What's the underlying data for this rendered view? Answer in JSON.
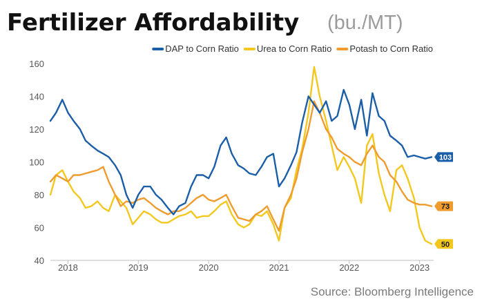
{
  "header": {
    "title": "Fertilizer Affordability",
    "unit": "(bu./MT)"
  },
  "source": "Source: Bloomberg Intelligence",
  "chart_data": {
    "type": "line",
    "title": "Fertilizer Affordability",
    "ylabel": "",
    "xlabel": "",
    "ylim": [
      40,
      160
    ],
    "xlim": [
      2017.75,
      2023.2
    ],
    "yticks": [
      "40",
      "60",
      "80",
      "100",
      "120",
      "140",
      "160"
    ],
    "xticks": [
      {
        "value": 2018,
        "label": "2018"
      },
      {
        "value": 2019,
        "label": "2019"
      },
      {
        "value": 2020,
        "label": "2020"
      },
      {
        "value": 2021,
        "label": "2021"
      },
      {
        "value": 2022,
        "label": "2022"
      },
      {
        "value": 2023,
        "label": "2023"
      }
    ],
    "grid": false,
    "legend_position": "top-right",
    "series": [
      {
        "name": "DAP to Corn Ratio",
        "color": "#1a5ea8",
        "end_label": "103",
        "x": [
          2017.75,
          2017.83,
          2017.92,
          2018.0,
          2018.08,
          2018.17,
          2018.25,
          2018.33,
          2018.42,
          2018.5,
          2018.58,
          2018.67,
          2018.75,
          2018.83,
          2018.92,
          2019.0,
          2019.08,
          2019.17,
          2019.25,
          2019.33,
          2019.42,
          2019.5,
          2019.58,
          2019.67,
          2019.75,
          2019.83,
          2019.92,
          2020.0,
          2020.08,
          2020.17,
          2020.25,
          2020.33,
          2020.42,
          2020.5,
          2020.58,
          2020.67,
          2020.75,
          2020.83,
          2020.92,
          2021.0,
          2021.08,
          2021.17,
          2021.25,
          2021.33,
          2021.42,
          2021.5,
          2021.58,
          2021.67,
          2021.75,
          2021.83,
          2021.92,
          2022.0,
          2022.08,
          2022.17,
          2022.25,
          2022.33,
          2022.42,
          2022.5,
          2022.58,
          2022.67,
          2022.75,
          2022.83,
          2022.92,
          2023.0,
          2023.08,
          2023.17
        ],
        "y": [
          125,
          130,
          138,
          130,
          125,
          120,
          113,
          110,
          107,
          105,
          103,
          98,
          92,
          80,
          72,
          80,
          85,
          85,
          80,
          77,
          72,
          68,
          73,
          75,
          85,
          92,
          92,
          90,
          97,
          110,
          115,
          105,
          98,
          96,
          93,
          92,
          97,
          103,
          105,
          85,
          90,
          98,
          106,
          124,
          140,
          135,
          130,
          137,
          125,
          128,
          144,
          135,
          120,
          138,
          116,
          142,
          128,
          125,
          116,
          113,
          110,
          103,
          104,
          103,
          102,
          103
        ]
      },
      {
        "name": "Urea to Corn Ratio",
        "color": "#f2c81e",
        "end_label": "50",
        "x": [
          2017.75,
          2017.83,
          2017.92,
          2018.0,
          2018.08,
          2018.17,
          2018.25,
          2018.33,
          2018.42,
          2018.5,
          2018.58,
          2018.67,
          2018.75,
          2018.83,
          2018.92,
          2019.0,
          2019.08,
          2019.17,
          2019.25,
          2019.33,
          2019.42,
          2019.5,
          2019.58,
          2019.67,
          2019.75,
          2019.83,
          2019.92,
          2020.0,
          2020.08,
          2020.17,
          2020.25,
          2020.33,
          2020.42,
          2020.5,
          2020.58,
          2020.67,
          2020.75,
          2020.83,
          2020.92,
          2021.0,
          2021.08,
          2021.17,
          2021.25,
          2021.33,
          2021.42,
          2021.5,
          2021.58,
          2021.67,
          2021.75,
          2021.83,
          2021.92,
          2022.0,
          2022.08,
          2022.17,
          2022.25,
          2022.33,
          2022.42,
          2022.5,
          2022.58,
          2022.67,
          2022.75,
          2022.83,
          2022.92,
          2023.0,
          2023.08,
          2023.17
        ],
        "y": [
          80,
          92,
          95,
          88,
          82,
          78,
          72,
          73,
          76,
          72,
          70,
          80,
          76,
          72,
          62,
          66,
          70,
          68,
          65,
          63,
          63,
          65,
          67,
          68,
          70,
          66,
          67,
          67,
          70,
          74,
          76,
          68,
          62,
          60,
          62,
          68,
          67,
          70,
          62,
          52,
          72,
          78,
          95,
          108,
          130,
          158,
          140,
          125,
          110,
          95,
          103,
          97,
          90,
          75,
          110,
          117,
          93,
          80,
          70,
          95,
          98,
          90,
          78,
          60,
          52,
          50
        ]
      },
      {
        "name": "Potash to Corn Ratio",
        "color": "#ef9b2d",
        "end_label": "73",
        "x": [
          2017.75,
          2017.83,
          2017.92,
          2018.0,
          2018.08,
          2018.17,
          2018.25,
          2018.33,
          2018.42,
          2018.5,
          2018.58,
          2018.67,
          2018.75,
          2018.83,
          2018.92,
          2019.0,
          2019.08,
          2019.17,
          2019.25,
          2019.33,
          2019.42,
          2019.5,
          2019.58,
          2019.67,
          2019.75,
          2019.83,
          2019.92,
          2020.0,
          2020.08,
          2020.17,
          2020.25,
          2020.33,
          2020.42,
          2020.5,
          2020.58,
          2020.67,
          2020.75,
          2020.83,
          2020.92,
          2021.0,
          2021.08,
          2021.17,
          2021.25,
          2021.33,
          2021.42,
          2021.5,
          2021.58,
          2021.67,
          2021.75,
          2021.83,
          2021.92,
          2022.0,
          2022.08,
          2022.17,
          2022.25,
          2022.33,
          2022.42,
          2022.5,
          2022.58,
          2022.67,
          2022.75,
          2022.83,
          2022.92,
          2023.0,
          2023.08,
          2023.17
        ],
        "y": [
          88,
          92,
          90,
          88,
          92,
          92,
          93,
          94,
          95,
          97,
          88,
          80,
          73,
          76,
          75,
          77,
          78,
          75,
          72,
          70,
          68,
          70,
          70,
          72,
          75,
          78,
          80,
          77,
          76,
          78,
          80,
          73,
          66,
          65,
          64,
          68,
          70,
          73,
          65,
          58,
          72,
          80,
          90,
          106,
          120,
          137,
          130,
          120,
          115,
          108,
          105,
          103,
          100,
          98,
          105,
          110,
          103,
          100,
          92,
          88,
          82,
          77,
          75,
          74,
          74,
          73
        ]
      }
    ]
  }
}
